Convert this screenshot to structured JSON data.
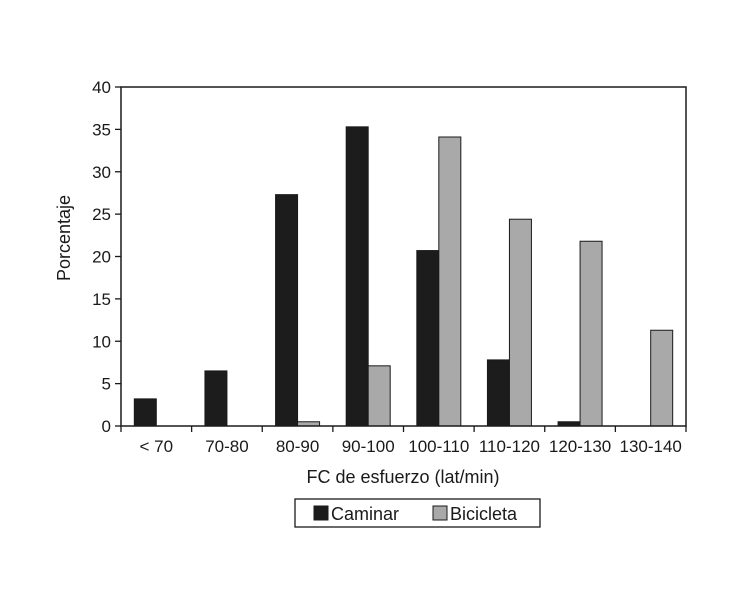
{
  "chart_data": {
    "type": "bar",
    "title": "",
    "xlabel": "FC de esfuerzo (lat/min)",
    "ylabel": "Porcentaje",
    "ylim": [
      0,
      40
    ],
    "yticks": [
      0,
      5,
      10,
      15,
      20,
      25,
      30,
      35,
      40
    ],
    "grid": false,
    "legend_position": "bottom-center",
    "categories": [
      "< 70",
      "70-80",
      "80-90",
      "90-100",
      "100-110",
      "110-120",
      "120-130",
      "130-140"
    ],
    "series": [
      {
        "name": "Caminar",
        "color": "#1c1c1c",
        "values": [
          3.2,
          6.5,
          27.3,
          35.3,
          20.7,
          7.8,
          0.5,
          0
        ]
      },
      {
        "name": "Bicicleta",
        "color": "#a9a9a9",
        "values": [
          0,
          0,
          0.5,
          7.1,
          34.1,
          24.4,
          21.8,
          11.3
        ]
      }
    ]
  }
}
